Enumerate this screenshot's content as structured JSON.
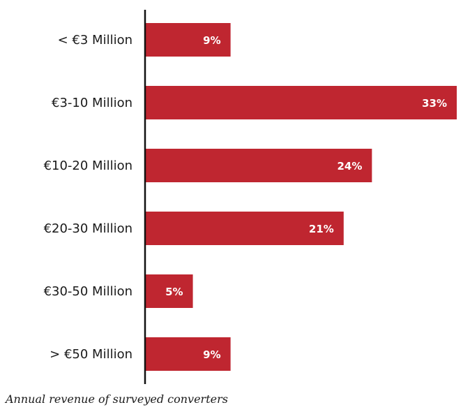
{
  "caption": "Annual revenue of surveyed converters",
  "colors": {
    "bar": "#bf2630",
    "axis": "#111111"
  },
  "chart_data": {
    "type": "bar",
    "orientation": "horizontal",
    "categories": [
      "< €3 Million",
      "€3-10 Million",
      "€10-20 Million",
      "€20-30 Million",
      "€30-50 Million",
      "> €50 Million"
    ],
    "values": [
      9,
      33,
      24,
      21,
      5,
      9
    ],
    "value_labels": [
      "9%",
      "33%",
      "24%",
      "21%",
      "5%",
      "9%"
    ],
    "unit": "%",
    "xlim": [
      0,
      33
    ],
    "grid": false,
    "legend": "none"
  }
}
